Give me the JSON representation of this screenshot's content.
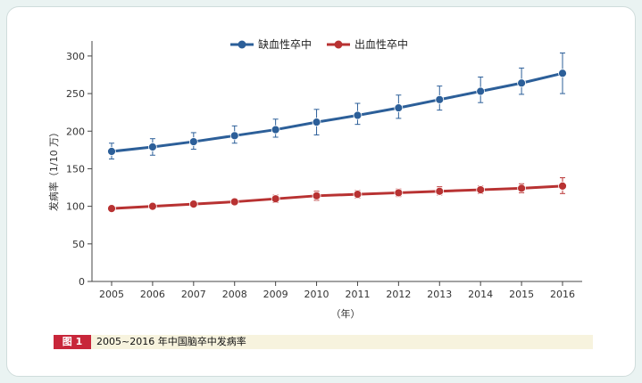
{
  "chart_data": {
    "type": "line",
    "x": [
      2005,
      2006,
      2007,
      2008,
      2009,
      2010,
      2011,
      2012,
      2013,
      2014,
      2015,
      2016
    ],
    "series": [
      {
        "name": "缺血性卒中",
        "color": "#2c5f99",
        "values": [
          173,
          179,
          186,
          194,
          202,
          212,
          221,
          231,
          242,
          253,
          264,
          277
        ],
        "err_low": [
          10,
          11,
          10,
          10,
          10,
          17,
          12,
          14,
          14,
          15,
          15,
          27
        ],
        "err_high": [
          11,
          11,
          12,
          13,
          14,
          17,
          16,
          17,
          18,
          19,
          20,
          27
        ]
      },
      {
        "name": "出血性卒中",
        "color": "#b83232",
        "values": [
          97,
          100,
          103,
          106,
          110,
          114,
          116,
          118,
          120,
          122,
          124,
          127
        ],
        "err_low": [
          3,
          3,
          3,
          4,
          5,
          6,
          5,
          5,
          5,
          5,
          6,
          10
        ],
        "err_high": [
          3,
          3,
          3,
          4,
          5,
          6,
          5,
          5,
          6,
          5,
          6,
          11
        ]
      }
    ],
    "yticks": [
      0,
      50,
      100,
      150,
      200,
      250,
      300
    ],
    "ylim": [
      0,
      320
    ],
    "xlabel": "（年）",
    "ylabel": "发病率（1/10 万）",
    "legend": "top-center"
  },
  "caption": {
    "figure_label": "图 1",
    "text": "2005~2016 年中国脑卒中发病率"
  }
}
